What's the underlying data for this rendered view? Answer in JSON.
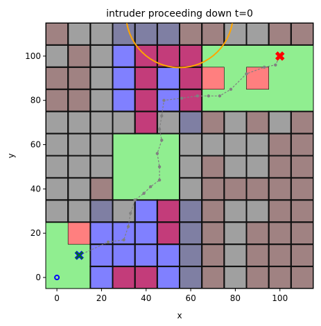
{
  "chart_data": {
    "type": "heatmap",
    "title": "intruder proceeding down t=0",
    "xlabel": "x",
    "ylabel": "y",
    "xlim": [
      -5,
      115
    ],
    "ylim": [
      -5,
      115
    ],
    "xticks": [
      0,
      20,
      40,
      60,
      80,
      100
    ],
    "yticks": [
      0,
      20,
      40,
      60,
      80,
      100
    ],
    "grid": {
      "origin": [
        0,
        0
      ],
      "cell_size": 10,
      "rows": [
        "BGGPPPBBGGBB",
        "GBGUMMMGGGBB",
        "BBGUMUMPGGBB",
        "BBGUMUMGGGGG",
        "GGGGMGPBGBGB",
        "GGGGRRGGGGBB",
        "GGGGGGGBGGBB",
        "GGBGGGGBBBBB",
        "GGPGUMPBGGBB",
        "GRUUUMPBGBBB",
        "GGUUUUPBGBBB",
        "GGUMMUPBGBBB"
      ],
      "legend_codes": {
        "G": "#a0a0a0",
        "B": "#a08282",
        "P": "#7f7fa3",
        "U": "#8080ff",
        "M": "#c33c7a",
        "R": "#ff7f7f"
      }
    },
    "green_regions": [
      {
        "x": [
          -5,
          15
        ],
        "y": [
          -5,
          25
        ],
        "color": "#90ee90"
      },
      {
        "x": [
          25,
          55
        ],
        "y": [
          35,
          65
        ],
        "color": "#90ee90"
      },
      {
        "x": [
          45,
          55
        ],
        "y": [
          35,
          65
        ],
        "color": "#90ee90"
      },
      {
        "x": [
          65,
          115
        ],
        "y": [
          75,
          105
        ],
        "color": "#90ee90"
      },
      {
        "x": [
          75,
          115
        ],
        "y": [
          75,
          105
        ],
        "color": "#90ee90"
      }
    ],
    "red_cells": [
      {
        "x": [
          85,
          95
        ],
        "y": [
          85,
          95
        ],
        "color": "#ff7f7f"
      },
      {
        "x": [
          65,
          75
        ],
        "y": [
          85,
          95
        ],
        "color": "#ff7f7f"
      },
      {
        "x": [
          5,
          15
        ],
        "y": [
          15,
          25
        ],
        "color": "#ff7f7f"
      }
    ],
    "path": {
      "color": "#808080",
      "points": [
        [
          10,
          10
        ],
        [
          23,
          16
        ],
        [
          30,
          17
        ],
        [
          32,
          23
        ],
        [
          33,
          29
        ],
        [
          35,
          35
        ],
        [
          39,
          38
        ],
        [
          42,
          41
        ],
        [
          46,
          44
        ],
        [
          46,
          50
        ],
        [
          45,
          56
        ],
        [
          47,
          62
        ],
        [
          46,
          67
        ],
        [
          47,
          73
        ],
        [
          48,
          80
        ],
        [
          56,
          81
        ],
        [
          63,
          82
        ],
        [
          68,
          82
        ],
        [
          73,
          82
        ],
        [
          78,
          85
        ],
        [
          85,
          92
        ],
        [
          93,
          95
        ],
        [
          98,
          96
        ],
        [
          100,
          100
        ]
      ]
    },
    "markers": [
      {
        "kind": "start-circle",
        "x": 0,
        "y": 0,
        "color": "#0000ff"
      },
      {
        "kind": "agent-x",
        "x": 10,
        "y": 10,
        "color": "#0000ff"
      },
      {
        "kind": "agent-x-outline",
        "x": 10,
        "y": 10,
        "color": "#008000"
      },
      {
        "kind": "target-x",
        "x": 100,
        "y": 100,
        "color": "#ff0000"
      }
    ],
    "intruder_arc": {
      "center": [
        55,
        119
      ],
      "radius": 24,
      "color": "#ffa500"
    }
  }
}
